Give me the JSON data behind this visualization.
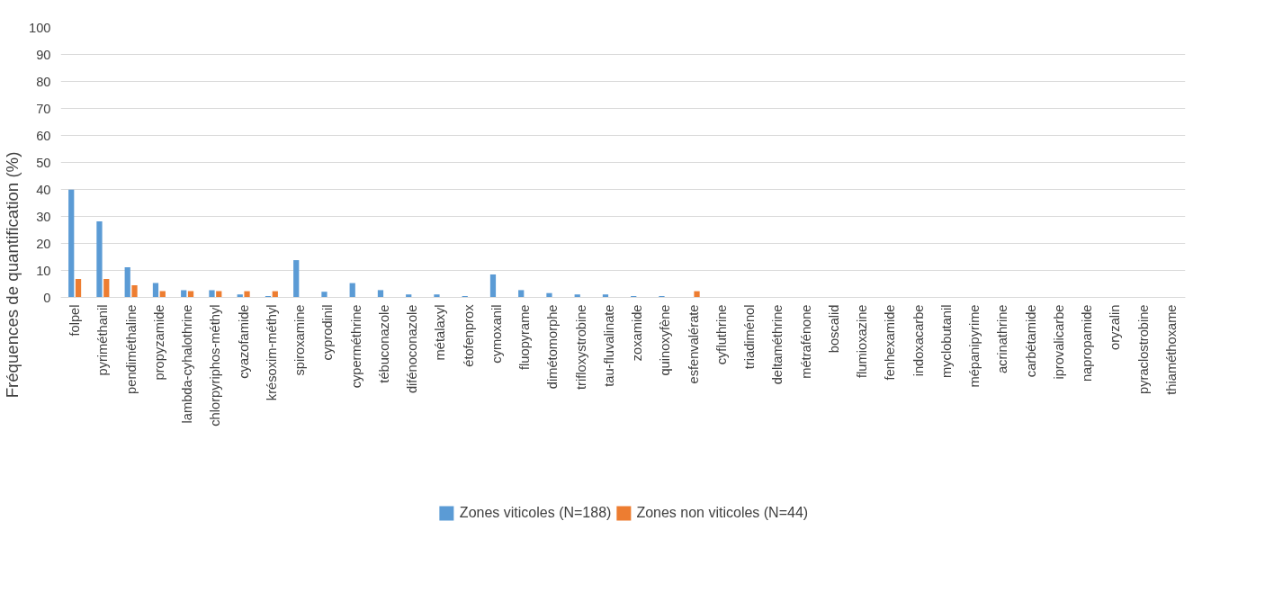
{
  "chart_data": {
    "type": "bar",
    "ylabel": "Fréquences de quantification (%)",
    "categories": [
      "folpel",
      "pyriméthanil",
      "pendiméthaline",
      "propyzamide",
      "lambda-cyhalothrine",
      "chlorpyriphos-méthyl",
      "cyazofamide",
      "krésoxim-méthyl",
      "spiroxamine",
      "cyprodinil",
      "cyperméthrine",
      "tébuconazole",
      "difénoconazole",
      "métalaxyl",
      "étofenprox",
      "cymoxanil",
      "fluopyrame",
      "dimétomorphe",
      "trifloxystrobine",
      "tau-fluvalinate",
      "zoxamide",
      "quinoxyfène",
      "esfenvalérate",
      "cyfluthrine",
      "triadiménol",
      "deltaméthrine",
      "métrafénone",
      "boscalid",
      "flumioxazine",
      "fenhexamide",
      "indoxacarbe",
      "myclobutanil",
      "mépanipyrime",
      "acrinathrine",
      "carbétamide",
      "iprovalicarbe",
      "napropamide",
      "oryzalin",
      "pyraclostrobine",
      "thiaméthoxame"
    ],
    "series": [
      {
        "name": "Zones viticoles (N=188)",
        "color": "#5b9bd5",
        "values": [
          39.9,
          28.2,
          11.2,
          5.3,
          2.7,
          2.7,
          1.1,
          0.5,
          13.8,
          2.1,
          5.3,
          2.7,
          1.1,
          1.1,
          0.5,
          8.5,
          2.7,
          1.6,
          1.1,
          1.1,
          0.5,
          0.5,
          0,
          0,
          0,
          0,
          0,
          0,
          0,
          0,
          0,
          0,
          0,
          0,
          0,
          0,
          0,
          0,
          0,
          0
        ]
      },
      {
        "name": "Zones non viticoles (N=44)",
        "color": "#ed7d31",
        "values": [
          6.8,
          6.8,
          4.5,
          2.3,
          2.3,
          2.3,
          2.3,
          2.3,
          0,
          0,
          0,
          0,
          0,
          0,
          0,
          0,
          0,
          0,
          0,
          0,
          0,
          0,
          2.3,
          0,
          0,
          0,
          0,
          0,
          0,
          0,
          0,
          0,
          0,
          0,
          0,
          0,
          0,
          0,
          0,
          0
        ]
      }
    ],
    "ylim": [
      0,
      100
    ],
    "yticks": [
      0,
      10,
      20,
      30,
      40,
      50,
      60,
      70,
      80,
      90,
      100
    ],
    "grid": "y",
    "legend": "bottom"
  }
}
